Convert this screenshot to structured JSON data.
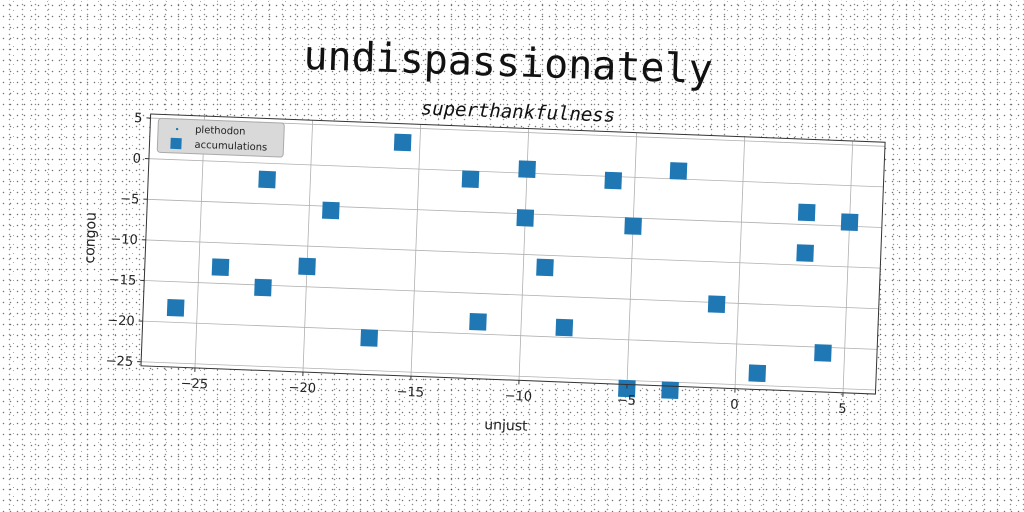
{
  "figure": {
    "title": "undispassionately"
  },
  "chart_data": {
    "type": "scatter",
    "title": "superthankfulness",
    "xlabel": "unjust",
    "ylabel": "congou",
    "xlim": [
      -27.5,
      6.5
    ],
    "ylim": [
      -25.5,
      5.5
    ],
    "xticks": [
      -25,
      -20,
      -15,
      -10,
      -5,
      0,
      5
    ],
    "yticks": [
      -25,
      -20,
      -15,
      -10,
      -5,
      0,
      5
    ],
    "xtick_labels": [
      "−25",
      "−20",
      "−15",
      "−10",
      "−5",
      "0",
      "5"
    ],
    "ytick_labels": [
      "−25",
      "−20",
      "−15",
      "−10",
      "−5",
      "0",
      "5"
    ],
    "grid": true,
    "legend": {
      "position": "top-left",
      "entries": [
        {
          "label": "plethodon",
          "marker": "point",
          "color": "#1f77b4"
        },
        {
          "label": "accumulations",
          "marker": "square",
          "color": "#1f77b4"
        }
      ]
    },
    "series": [
      {
        "name": "accumulations",
        "marker": "square",
        "color": "#1f77b4",
        "points": [
          [
            -26.0,
            -18.2
          ],
          [
            -24.0,
            -13.0
          ],
          [
            -22.0,
            -15.3
          ],
          [
            -22.0,
            -2.0
          ],
          [
            -20.0,
            -12.5
          ],
          [
            -19.0,
            -5.5
          ],
          [
            -17.0,
            -21.0
          ],
          [
            -15.8,
            3.2
          ],
          [
            -12.6,
            -1.0
          ],
          [
            -12.0,
            -18.5
          ],
          [
            -10.0,
            -5.5
          ],
          [
            -10.0,
            0.5
          ],
          [
            -9.0,
            -11.5
          ],
          [
            -8.0,
            -18.8
          ],
          [
            -6.0,
            -0.5
          ],
          [
            -5.0,
            -6.0
          ],
          [
            -5.0,
            -26.0
          ],
          [
            -3.0,
            -26.0
          ],
          [
            -3.0,
            1.0
          ],
          [
            -1.0,
            -15.2
          ],
          [
            1.0,
            -23.5
          ],
          [
            3.0,
            -8.5
          ],
          [
            3.0,
            -3.5
          ],
          [
            4.0,
            -20.7
          ],
          [
            5.0,
            -4.5
          ]
        ]
      }
    ]
  }
}
